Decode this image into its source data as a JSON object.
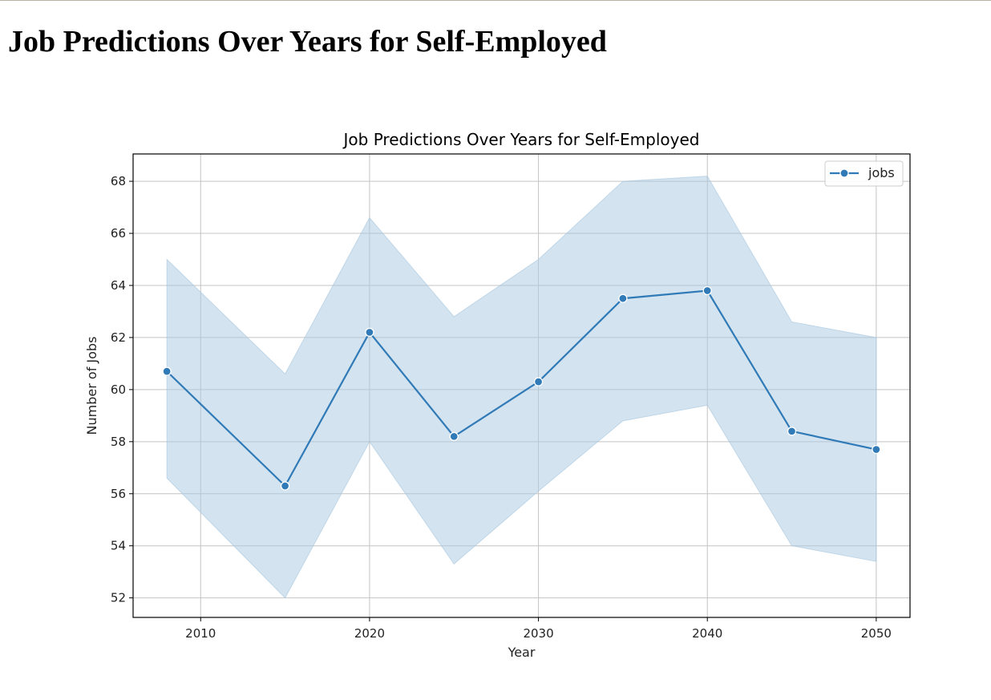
{
  "page": {
    "heading": "Job Predictions Over Years for Self-Employed"
  },
  "colors": {
    "line": "#2f7ab7",
    "band": "#a7c7e0",
    "grid": "#c4c4c4",
    "axis": "#000000"
  },
  "chart_data": {
    "type": "line",
    "title": "Job Predictions Over Years for Self-Employed",
    "xlabel": "Year",
    "ylabel": "Number of Jobs",
    "xlim": [
      2006,
      2052
    ],
    "ylim": [
      51.25,
      69.05
    ],
    "xticks": [
      2010,
      2020,
      2030,
      2040,
      2050
    ],
    "yticks": [
      52,
      54,
      56,
      58,
      60,
      62,
      64,
      66,
      68
    ],
    "grid": true,
    "legend_position": "top-right",
    "series": [
      {
        "name": "jobs",
        "marker": "circle",
        "x": [
          2008,
          2015,
          2020,
          2025,
          2030,
          2035,
          2040,
          2045,
          2050
        ],
        "y": [
          60.7,
          56.3,
          62.2,
          58.2,
          60.3,
          63.5,
          63.8,
          58.4,
          57.7
        ],
        "ci_lower": [
          56.6,
          52.0,
          58.0,
          53.3,
          56.1,
          58.8,
          59.4,
          54.0,
          53.4
        ],
        "ci_upper": [
          65.0,
          60.6,
          66.6,
          62.8,
          65.0,
          68.0,
          68.2,
          62.6,
          62.0
        ]
      }
    ]
  }
}
